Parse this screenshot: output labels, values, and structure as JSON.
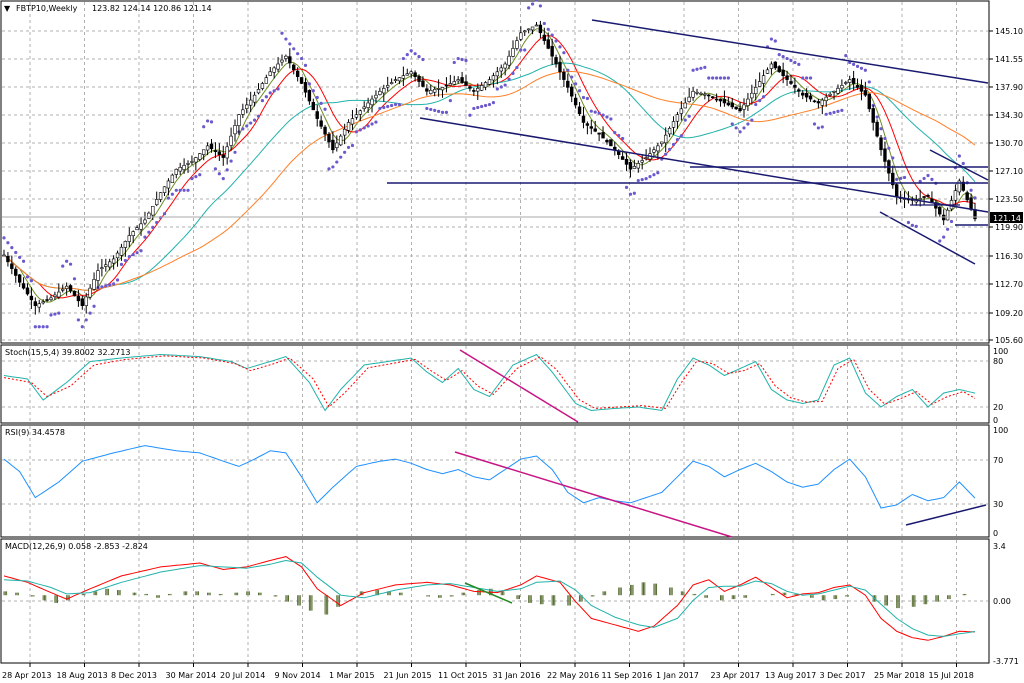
{
  "chart_data": [
    {
      "type": "candlestick",
      "title_arrow": "▼",
      "title": "FBTP10,Weekly",
      "ohlc_label": "123.82 124.14 120.86 121.14",
      "last_price": "121.14",
      "y_ticks": [
        "145.10",
        "141.55",
        "137.90",
        "134.30",
        "130.70",
        "127.10",
        "123.50",
        "119.90",
        "116.30",
        "112.70",
        "109.20",
        "105.60"
      ],
      "ylim": [
        105.6,
        146.9
      ],
      "x_ticks": [
        "28 Apr 2013",
        "18 Aug 2013",
        "8 Dec 2013",
        "30 Mar 2014",
        "20 Jul 2014",
        "9 Nov 2014",
        "1 Mar 2015",
        "21 Jun 2015",
        "11 Oct 2015",
        "31 Jan 2016",
        "22 May 2016",
        "11 Sep 2016",
        "1 Jan 2017",
        "23 Apr 2017",
        "13 Aug 2017",
        "3 Dec 2017",
        "25 Mar 2018",
        "15 Jul 2018"
      ],
      "close_path": [
        [
          0,
          116.5
        ],
        [
          4,
          113
        ],
        [
          8,
          110
        ],
        [
          12,
          111
        ],
        [
          16,
          112.5
        ],
        [
          20,
          110
        ],
        [
          24,
          114.5
        ],
        [
          28,
          116
        ],
        [
          32,
          119
        ],
        [
          36,
          121
        ],
        [
          40,
          124.5
        ],
        [
          44,
          127.5
        ],
        [
          48,
          128.5
        ],
        [
          52,
          130.5
        ],
        [
          56,
          129
        ],
        [
          60,
          134.5
        ],
        [
          64,
          137
        ],
        [
          68,
          140
        ],
        [
          72,
          142
        ],
        [
          76,
          138.5
        ],
        [
          80,
          134
        ],
        [
          84,
          130
        ],
        [
          88,
          133.5
        ],
        [
          92,
          135.5
        ],
        [
          96,
          137.5
        ],
        [
          100,
          139
        ],
        [
          104,
          140
        ],
        [
          108,
          137.5
        ],
        [
          112,
          138
        ],
        [
          116,
          139
        ],
        [
          120,
          137.5
        ],
        [
          124,
          139
        ],
        [
          128,
          141
        ],
        [
          132,
          145
        ],
        [
          136,
          146
        ],
        [
          140,
          142
        ],
        [
          144,
          138
        ],
        [
          148,
          133.5
        ],
        [
          152,
          132
        ],
        [
          156,
          130
        ],
        [
          160,
          127.5
        ],
        [
          164,
          129
        ],
        [
          168,
          131
        ],
        [
          172,
          134.5
        ],
        [
          176,
          137.5
        ],
        [
          180,
          137
        ],
        [
          184,
          136
        ],
        [
          188,
          135
        ],
        [
          192,
          138
        ],
        [
          196,
          141
        ],
        [
          200,
          139
        ],
        [
          204,
          137
        ],
        [
          208,
          136
        ],
        [
          212,
          137.5
        ],
        [
          216,
          139
        ],
        [
          220,
          137
        ],
        [
          224,
          130
        ],
        [
          228,
          124
        ],
        [
          232,
          123.5
        ],
        [
          236,
          124
        ],
        [
          240,
          121
        ],
        [
          244,
          126
        ],
        [
          248,
          121.14
        ]
      ]
    },
    {
      "type": "line",
      "title": "Stoch(15,5,4) 39.8002 32.2713",
      "y_ticks": [
        "100",
        "80",
        "20",
        "0"
      ],
      "ylim": [
        0,
        100
      ],
      "main_path": [
        [
          0,
          65
        ],
        [
          6,
          60
        ],
        [
          10,
          30
        ],
        [
          16,
          55
        ],
        [
          22,
          85
        ],
        [
          30,
          90
        ],
        [
          40,
          95
        ],
        [
          50,
          92
        ],
        [
          58,
          85
        ],
        [
          62,
          75
        ],
        [
          68,
          85
        ],
        [
          72,
          92
        ],
        [
          78,
          55
        ],
        [
          82,
          15
        ],
        [
          86,
          45
        ],
        [
          92,
          80
        ],
        [
          98,
          85
        ],
        [
          104,
          90
        ],
        [
          108,
          70
        ],
        [
          112,
          55
        ],
        [
          116,
          75
        ],
        [
          120,
          45
        ],
        [
          124,
          35
        ],
        [
          130,
          80
        ],
        [
          136,
          95
        ],
        [
          140,
          70
        ],
        [
          146,
          25
        ],
        [
          150,
          15
        ],
        [
          156,
          18
        ],
        [
          162,
          20
        ],
        [
          168,
          15
        ],
        [
          172,
          60
        ],
        [
          176,
          90
        ],
        [
          180,
          80
        ],
        [
          184,
          65
        ],
        [
          188,
          75
        ],
        [
          192,
          85
        ],
        [
          196,
          45
        ],
        [
          200,
          30
        ],
        [
          204,
          25
        ],
        [
          208,
          30
        ],
        [
          212,
          80
        ],
        [
          216,
          90
        ],
        [
          220,
          40
        ],
        [
          224,
          20
        ],
        [
          228,
          35
        ],
        [
          232,
          45
        ],
        [
          236,
          20
        ],
        [
          240,
          40
        ],
        [
          244,
          45
        ],
        [
          248,
          39.8
        ]
      ],
      "signal_path": [
        [
          0,
          62
        ],
        [
          7,
          55
        ],
        [
          11,
          35
        ],
        [
          17,
          50
        ],
        [
          23,
          80
        ],
        [
          31,
          88
        ],
        [
          41,
          93
        ],
        [
          51,
          90
        ],
        [
          59,
          82
        ],
        [
          63,
          72
        ],
        [
          69,
          82
        ],
        [
          73,
          90
        ],
        [
          79,
          60
        ],
        [
          83,
          20
        ],
        [
          87,
          40
        ],
        [
          93,
          76
        ],
        [
          99,
          82
        ],
        [
          105,
          88
        ],
        [
          109,
          72
        ],
        [
          113,
          58
        ],
        [
          117,
          72
        ],
        [
          121,
          50
        ],
        [
          125,
          38
        ],
        [
          131,
          75
        ],
        [
          137,
          92
        ],
        [
          141,
          74
        ],
        [
          147,
          30
        ],
        [
          151,
          18
        ],
        [
          157,
          20
        ],
        [
          163,
          22
        ],
        [
          169,
          18
        ],
        [
          173,
          55
        ],
        [
          177,
          86
        ],
        [
          181,
          82
        ],
        [
          185,
          68
        ],
        [
          189,
          72
        ],
        [
          193,
          82
        ],
        [
          197,
          50
        ],
        [
          201,
          33
        ],
        [
          205,
          27
        ],
        [
          209,
          28
        ],
        [
          213,
          75
        ],
        [
          217,
          88
        ],
        [
          221,
          45
        ],
        [
          225,
          24
        ],
        [
          229,
          32
        ],
        [
          233,
          42
        ],
        [
          237,
          24
        ],
        [
          241,
          35
        ],
        [
          245,
          42
        ],
        [
          248,
          32.3
        ]
      ]
    },
    {
      "type": "line",
      "title": "RSI(9) 34.4578",
      "y_ticks": [
        "100",
        "70",
        "30",
        "0"
      ],
      "ylim": [
        0,
        100
      ],
      "path": [
        [
          0,
          72
        ],
        [
          4,
          60
        ],
        [
          8,
          35
        ],
        [
          14,
          50
        ],
        [
          20,
          70
        ],
        [
          28,
          78
        ],
        [
          36,
          85
        ],
        [
          44,
          80
        ],
        [
          50,
          78
        ],
        [
          56,
          70
        ],
        [
          60,
          65
        ],
        [
          64,
          72
        ],
        [
          68,
          80
        ],
        [
          72,
          78
        ],
        [
          76,
          55
        ],
        [
          80,
          30
        ],
        [
          84,
          45
        ],
        [
          90,
          65
        ],
        [
          96,
          70
        ],
        [
          100,
          72
        ],
        [
          104,
          68
        ],
        [
          108,
          62
        ],
        [
          112,
          58
        ],
        [
          116,
          62
        ],
        [
          120,
          55
        ],
        [
          124,
          52
        ],
        [
          128,
          62
        ],
        [
          132,
          72
        ],
        [
          136,
          75
        ],
        [
          140,
          62
        ],
        [
          144,
          40
        ],
        [
          148,
          30
        ],
        [
          152,
          35
        ],
        [
          156,
          32
        ],
        [
          160,
          30
        ],
        [
          164,
          35
        ],
        [
          168,
          40
        ],
        [
          172,
          55
        ],
        [
          176,
          70
        ],
        [
          180,
          65
        ],
        [
          184,
          55
        ],
        [
          188,
          62
        ],
        [
          192,
          68
        ],
        [
          196,
          60
        ],
        [
          200,
          50
        ],
        [
          204,
          45
        ],
        [
          208,
          48
        ],
        [
          212,
          62
        ],
        [
          216,
          72
        ],
        [
          220,
          55
        ],
        [
          224,
          25
        ],
        [
          228,
          28
        ],
        [
          232,
          38
        ],
        [
          236,
          32
        ],
        [
          240,
          35
        ],
        [
          244,
          50
        ],
        [
          248,
          34.5
        ]
      ]
    },
    {
      "type": "line",
      "title": "MACD(12,26,9) 0.058 -2.853 -2.824",
      "y_ticks": [
        "3.4",
        "0.00",
        "-3.771"
      ],
      "ylim": [
        -4.1,
        3.9
      ],
      "macd_path": [
        [
          0,
          1.5
        ],
        [
          6,
          1.0
        ],
        [
          12,
          0.2
        ],
        [
          16,
          -0.3
        ],
        [
          22,
          0.5
        ],
        [
          30,
          1.5
        ],
        [
          40,
          2.2
        ],
        [
          50,
          2.5
        ],
        [
          56,
          2.0
        ],
        [
          62,
          2.2
        ],
        [
          68,
          2.7
        ],
        [
          72,
          3.0
        ],
        [
          76,
          2.2
        ],
        [
          80,
          0.5
        ],
        [
          86,
          -0.8
        ],
        [
          92,
          0.2
        ],
        [
          100,
          0.8
        ],
        [
          108,
          1.0
        ],
        [
          114,
          0.8
        ],
        [
          120,
          0.3
        ],
        [
          126,
          0.2
        ],
        [
          132,
          0.8
        ],
        [
          136,
          1.5
        ],
        [
          142,
          1.0
        ],
        [
          146,
          -0.5
        ],
        [
          150,
          -1.8
        ],
        [
          156,
          -2.3
        ],
        [
          162,
          -2.8
        ],
        [
          166,
          -2.4
        ],
        [
          172,
          -0.8
        ],
        [
          176,
          0.8
        ],
        [
          180,
          1.2
        ],
        [
          184,
          0.3
        ],
        [
          188,
          0.8
        ],
        [
          192,
          1.4
        ],
        [
          196,
          0.6
        ],
        [
          200,
          -0.2
        ],
        [
          204,
          0.1
        ],
        [
          208,
          0.2
        ],
        [
          212,
          0.6
        ],
        [
          216,
          0.8
        ],
        [
          220,
          0.0
        ],
        [
          224,
          -1.8
        ],
        [
          228,
          -2.8
        ],
        [
          232,
          -3.3
        ],
        [
          236,
          -3.5
        ],
        [
          240,
          -3.2
        ],
        [
          244,
          -2.8
        ],
        [
          248,
          -2.85
        ]
      ],
      "signal_path": [
        [
          0,
          1.2
        ],
        [
          6,
          1.1
        ],
        [
          12,
          0.6
        ],
        [
          16,
          0.1
        ],
        [
          22,
          0.2
        ],
        [
          30,
          1.0
        ],
        [
          40,
          1.8
        ],
        [
          50,
          2.3
        ],
        [
          56,
          2.2
        ],
        [
          62,
          2.1
        ],
        [
          68,
          2.4
        ],
        [
          72,
          2.7
        ],
        [
          76,
          2.5
        ],
        [
          80,
          1.4
        ],
        [
          86,
          0.0
        ],
        [
          92,
          -0.2
        ],
        [
          100,
          0.4
        ],
        [
          108,
          0.8
        ],
        [
          114,
          0.9
        ],
        [
          120,
          0.6
        ],
        [
          126,
          0.3
        ],
        [
          132,
          0.5
        ],
        [
          136,
          1.0
        ],
        [
          142,
          1.1
        ],
        [
          146,
          0.4
        ],
        [
          150,
          -0.8
        ],
        [
          156,
          -1.7
        ],
        [
          162,
          -2.3
        ],
        [
          166,
          -2.5
        ],
        [
          172,
          -1.8
        ],
        [
          176,
          -0.4
        ],
        [
          180,
          0.6
        ],
        [
          184,
          0.7
        ],
        [
          188,
          0.7
        ],
        [
          192,
          1.1
        ],
        [
          196,
          0.9
        ],
        [
          200,
          0.3
        ],
        [
          204,
          0.0
        ],
        [
          208,
          0.1
        ],
        [
          212,
          0.4
        ],
        [
          216,
          0.7
        ],
        [
          220,
          0.4
        ],
        [
          224,
          -0.7
        ],
        [
          228,
          -1.8
        ],
        [
          232,
          -2.6
        ],
        [
          236,
          -3.1
        ],
        [
          240,
          -3.2
        ],
        [
          244,
          -3.0
        ],
        [
          248,
          -2.82
        ]
      ],
      "histogram": [
        0.3,
        0.2,
        -0.1,
        -0.4,
        -0.6,
        -0.4,
        0.1,
        0.3,
        0.5,
        0.4,
        0.2,
        0.1,
        -0.2,
        0.1,
        0.3,
        0.3,
        0.2,
        0.1,
        0.2,
        0.3,
        0.2,
        -0.1,
        -0.5,
        -0.8,
        -1.2,
        -1.5,
        -0.9,
        0.0,
        0.3,
        0.4,
        0.3,
        0.2,
        0.0,
        -0.1,
        -0.2,
        -0.1,
        0.2,
        0.4,
        0.5,
        0.3,
        -0.3,
        -0.6,
        -0.7,
        -0.8,
        -0.8,
        -0.5,
        -0.1,
        0.3,
        0.6,
        0.8,
        1.0,
        0.9,
        0.6,
        0.3,
        0.1,
        -0.2,
        -0.4,
        -0.3,
        -0.2,
        0.0,
        0.1,
        0.2,
        0.1,
        -0.2,
        -0.4,
        -0.3,
        -0.1,
        0.0,
        -0.5,
        -0.8,
        -1.0,
        -0.9,
        -0.7,
        -0.5,
        -0.3,
        0.1,
        0.0
      ],
      "histogram_color": "#556b2f"
    }
  ]
}
